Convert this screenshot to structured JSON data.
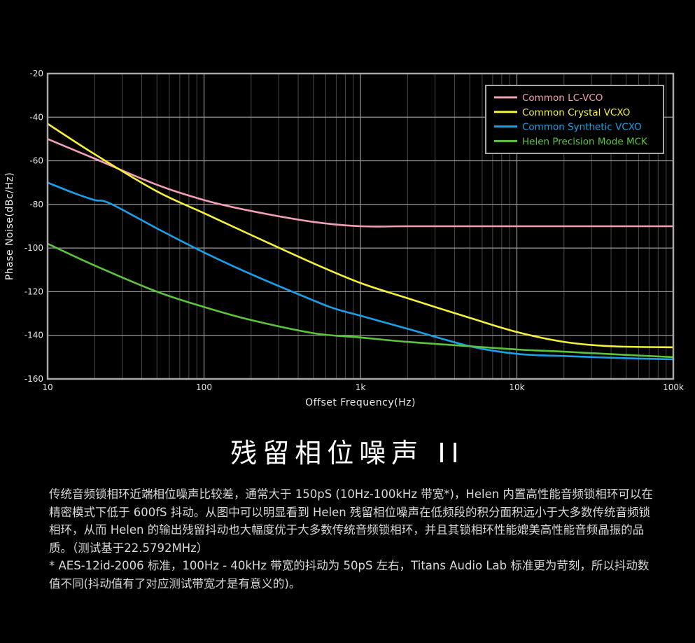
{
  "chart_data": {
    "type": "line",
    "xscale": "log",
    "xlim": [
      10,
      100000
    ],
    "ylim": [
      -160,
      -20
    ],
    "xlabel": "Offset Frequency(Hz)",
    "ylabel": "Phase Noise(dBc/Hz)",
    "x_ticks": [
      10,
      100,
      1000,
      10000,
      100000
    ],
    "x_tick_labels": [
      "10",
      "100",
      "1k",
      "10k",
      "100k"
    ],
    "y_ticks": [
      -20,
      -40,
      -60,
      -80,
      -100,
      -120,
      -140,
      -160
    ],
    "y_tick_labels": [
      "-20",
      "-40",
      "-60",
      "-80",
      "-100",
      "-120",
      "-140",
      "-160"
    ],
    "grid": true,
    "legend": "top-right",
    "series": [
      {
        "name": "Common LC-VCO",
        "color": "#f2a0b4",
        "x": [
          10,
          20,
          50,
          100,
          200,
          500,
          1000,
          2000,
          5000,
          10000,
          100000
        ],
        "y": [
          -50,
          -59,
          -71,
          -78,
          -83,
          -88,
          -90,
          -90,
          -90,
          -90,
          -90
        ]
      },
      {
        "name": "Common Crystal VCXO",
        "color": "#f5f03c",
        "x": [
          10,
          20,
          50,
          100,
          200,
          500,
          1000,
          2000,
          5000,
          10000,
          20000,
          40000,
          100000
        ],
        "y": [
          -43,
          -57,
          -74,
          -84,
          -94,
          -107,
          -116,
          -123,
          -132,
          -138.5,
          -143,
          -145,
          -145.5
        ]
      },
      {
        "name": "Common Synthetic VCXO",
        "color": "#1aa0e8",
        "x": [
          10,
          15,
          20,
          25,
          50,
          100,
          200,
          500,
          700,
          1000,
          2000,
          5000,
          10000,
          20000,
          50000,
          100000
        ],
        "y": [
          -70,
          -75,
          -78,
          -79.5,
          -91,
          -102,
          -112,
          -124,
          -128,
          -131,
          -137,
          -145,
          -148.5,
          -149.5,
          -150.5,
          -151
        ]
      },
      {
        "name": "Helen Precision Mode MCK",
        "color": "#5cc43c",
        "x": [
          10,
          20,
          50,
          100,
          200,
          500,
          1000,
          2000,
          5000,
          10000,
          20000,
          50000,
          100000
        ],
        "y": [
          -98,
          -108,
          -120,
          -127,
          -133,
          -139,
          -141,
          -143,
          -145,
          -146.5,
          -147.5,
          -149,
          -150
        ]
      }
    ]
  },
  "section": {
    "title": "残留相位噪声 II",
    "paragraph": "传统音频锁相环近端相位噪声比较差，通常大于 150pS (10Hz-100kHz 带宽*)，Helen 内置高性能音频锁相环可以在精密模式下低于 600fS 抖动。从图中可以明显看到 Helen 残留相位噪声在低频段的积分面积远小于大多数传统音频锁相环，从而 Helen 的输出残留抖动也大幅度优于大多数传统音频锁相环，并且其锁相环性能媲美高性能音频晶振的品质。（测试基于22.5792MHz）",
    "footnote": "* AES-12id-2006 标准，100Hz - 40kHz 带宽的抖动为 50pS 左右，Titans Audio Lab 标准更为苛刻，所以抖动数值不同(抖动值有了对应测试带宽才是有意义的)。"
  }
}
